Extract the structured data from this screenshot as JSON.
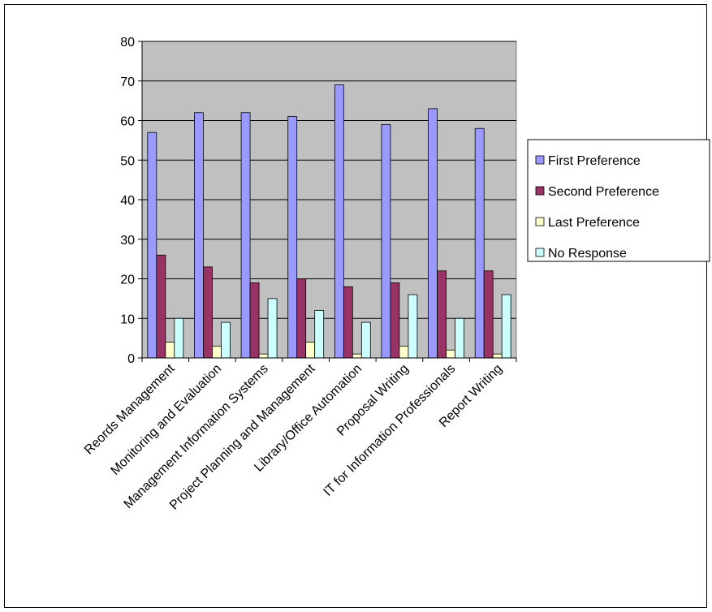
{
  "chart_data": {
    "type": "bar",
    "title": "",
    "xlabel": "",
    "ylabel": "",
    "ylim": [
      0,
      80
    ],
    "ytick_step": 10,
    "grid": true,
    "legend_position": "right",
    "plot_background": "#C0C0C0",
    "categories": [
      "Reords Management",
      "Monitoring and Evaluation",
      "Management Information Systems",
      "Project Planning and Management",
      "Library/Office Automation",
      "Proposal Writing",
      "IT for Information Professionals",
      "Report Writing"
    ],
    "series": [
      {
        "name": "First Preference",
        "color": "#9999FF",
        "values": [
          57,
          62,
          62,
          61,
          69,
          59,
          63,
          58
        ]
      },
      {
        "name": "Second Preference",
        "color": "#993366",
        "values": [
          26,
          23,
          19,
          20,
          18,
          19,
          22,
          22
        ]
      },
      {
        "name": "Last Preference",
        "color": "#FFFFCC",
        "values": [
          4,
          3,
          1,
          4,
          1,
          3,
          2,
          1
        ]
      },
      {
        "name": "No Response",
        "color": "#CCFFFF",
        "values": [
          10,
          9,
          15,
          12,
          9,
          16,
          10,
          16
        ]
      }
    ]
  }
}
